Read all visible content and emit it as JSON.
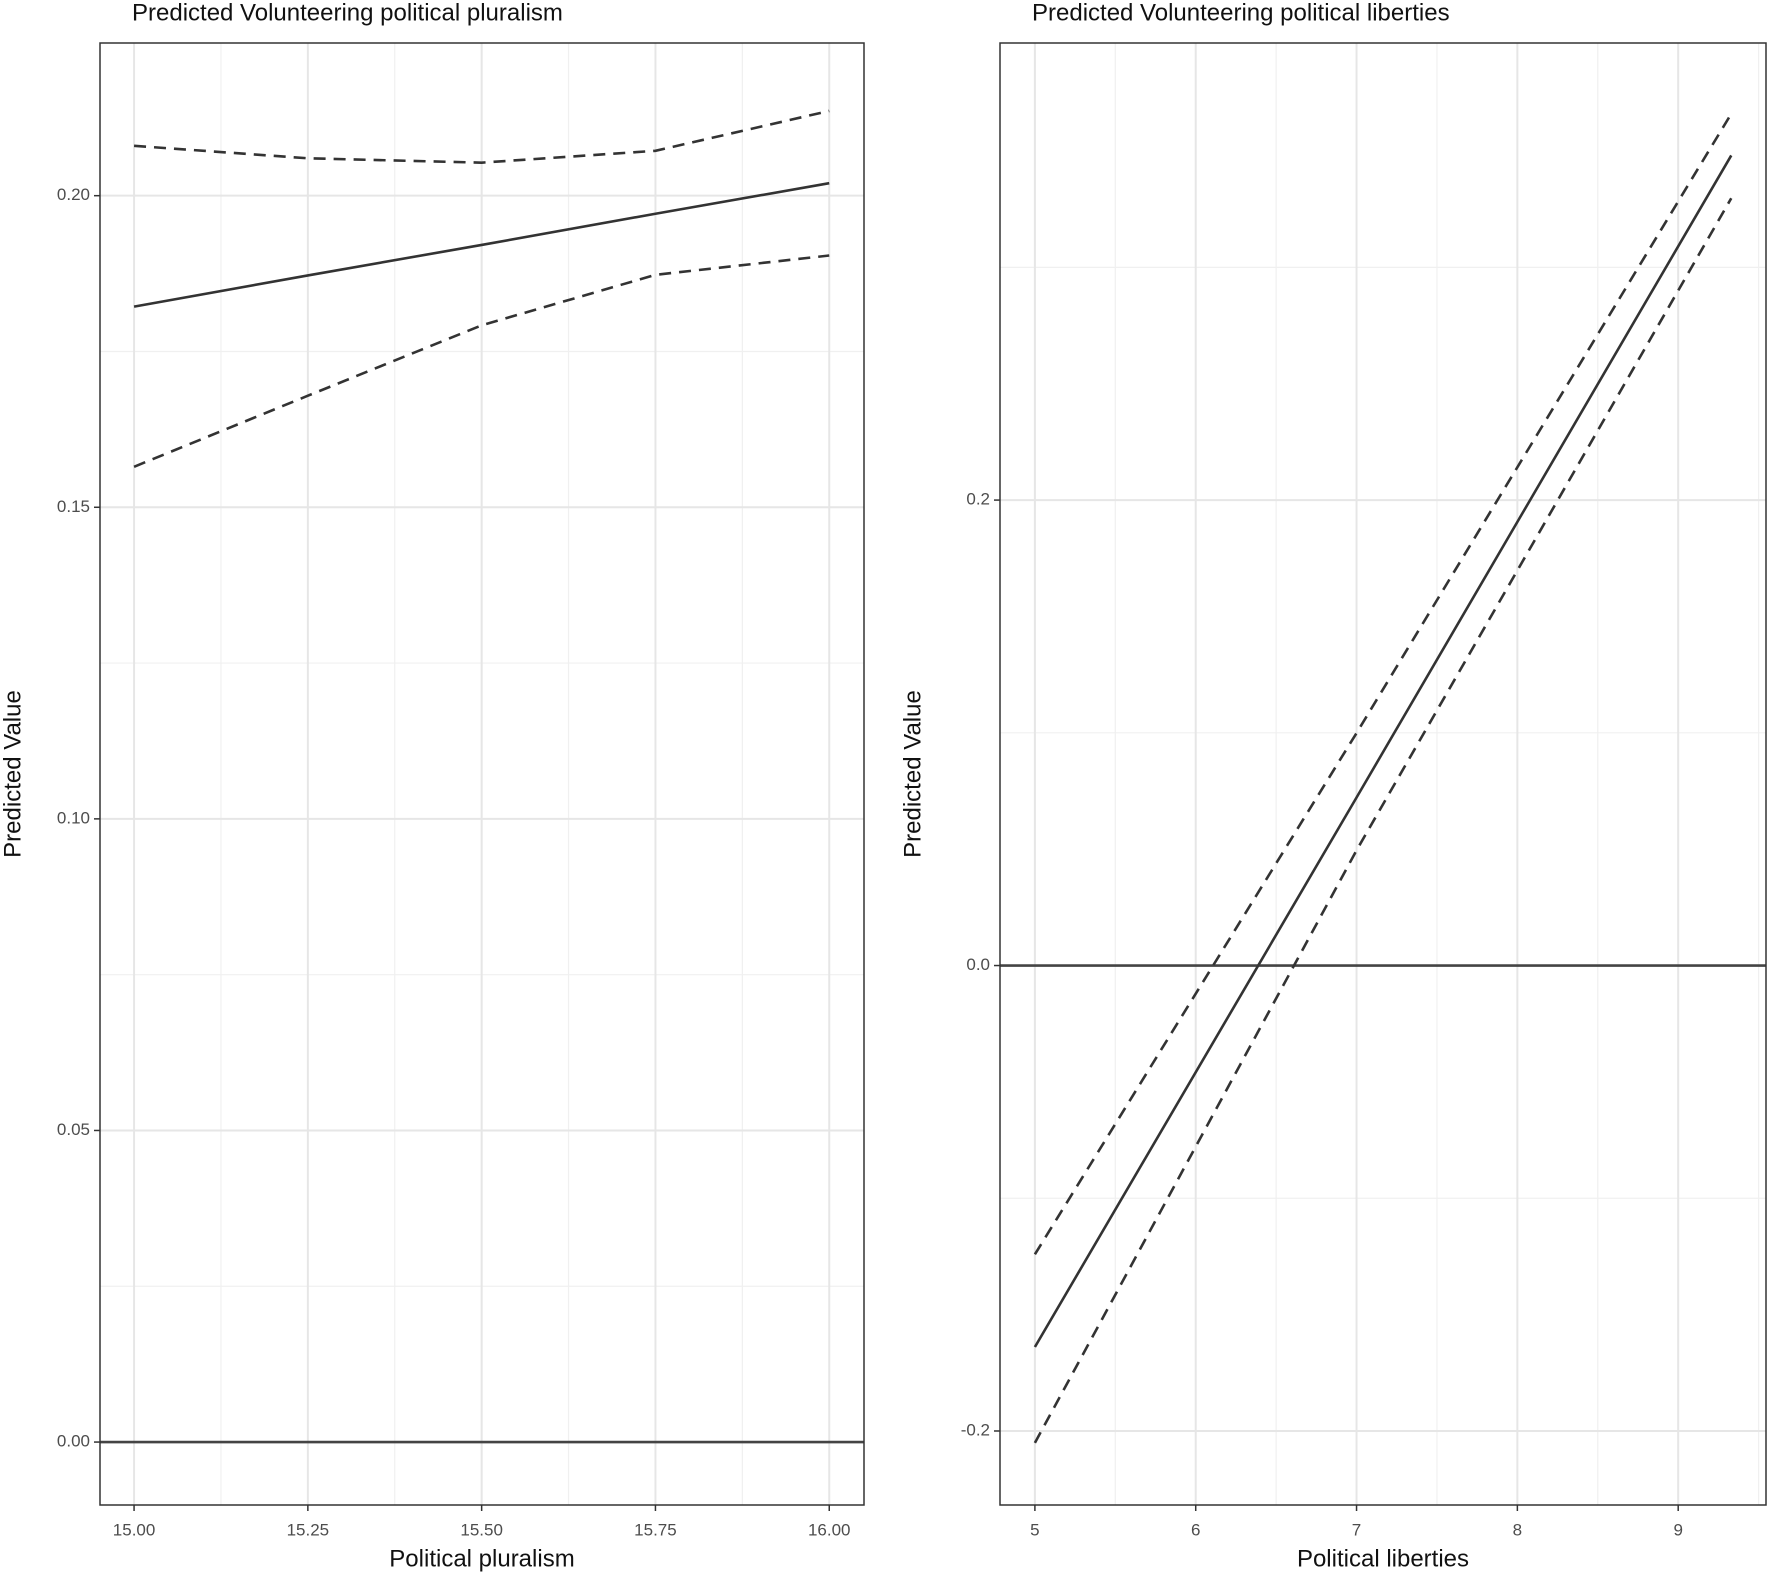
{
  "chart_data": [
    {
      "type": "line",
      "title": "Predicted Volunteering political pluralism",
      "xlabel": "Political pluralism",
      "ylabel": "Predicted Value",
      "x": [
        15,
        15.25,
        15.5,
        15.75,
        16
      ],
      "series": [
        {
          "color": "#333333",
          "dash": false,
          "values": [
            0.1822,
            0.1872,
            0.1921,
            0.1971,
            0.202
          ]
        },
        {
          "color": "#333333",
          "dash": true,
          "values": [
            0.208,
            0.206,
            0.2053,
            0.2072,
            0.2136
          ]
        },
        {
          "color": "#333333",
          "dash": true,
          "values": [
            0.1565,
            0.1679,
            0.1792,
            0.1873,
            0.1904
          ]
        }
      ],
      "hline": 0,
      "xlim": [
        14.951,
        16.05
      ],
      "ylim": [
        -0.0101,
        0.2245
      ],
      "xticks": [
        {
          "value": 15,
          "label": "15.00"
        },
        {
          "value": 15.25,
          "label": "15.25"
        },
        {
          "value": 15.5,
          "label": "15.50"
        },
        {
          "value": 15.75,
          "label": "15.75"
        },
        {
          "value": 16,
          "label": "16.00"
        }
      ],
      "yticks": [
        {
          "value": 0,
          "label": "0.00"
        },
        {
          "value": 0.05,
          "label": "0.05"
        },
        {
          "value": 0.1,
          "label": "0.10"
        },
        {
          "value": 0.15,
          "label": "0.15"
        },
        {
          "value": 0.2,
          "label": "0.20"
        }
      ],
      "grid": true
    },
    {
      "type": "line",
      "title": "Predicted Volunteering political liberties",
      "xlabel": "Political liberties",
      "ylabel": "Predicted Value",
      "x": [
        5,
        7,
        9.33
      ],
      "series": [
        {
          "color": "#333333",
          "dash": false,
          "values": [
            -0.1639,
            0.0722,
            0.3481
          ]
        },
        {
          "color": "#333333",
          "dash": true,
          "values": [
            -0.1241,
            0.0999,
            0.366
          ]
        },
        {
          "color": "#333333",
          "dash": true,
          "values": [
            -0.2051,
            0.0495,
            0.3297
          ]
        }
      ],
      "hline": 0,
      "xlim": [
        4.783,
        9.546
      ],
      "ylim": [
        -0.2318,
        0.3964
      ],
      "xticks": [
        5,
        6,
        7,
        8,
        9
      ],
      "yticks": [
        -0.2,
        {
          "value": 0,
          "label": "0.0"
        },
        0.2
      ],
      "grid": true
    }
  ]
}
